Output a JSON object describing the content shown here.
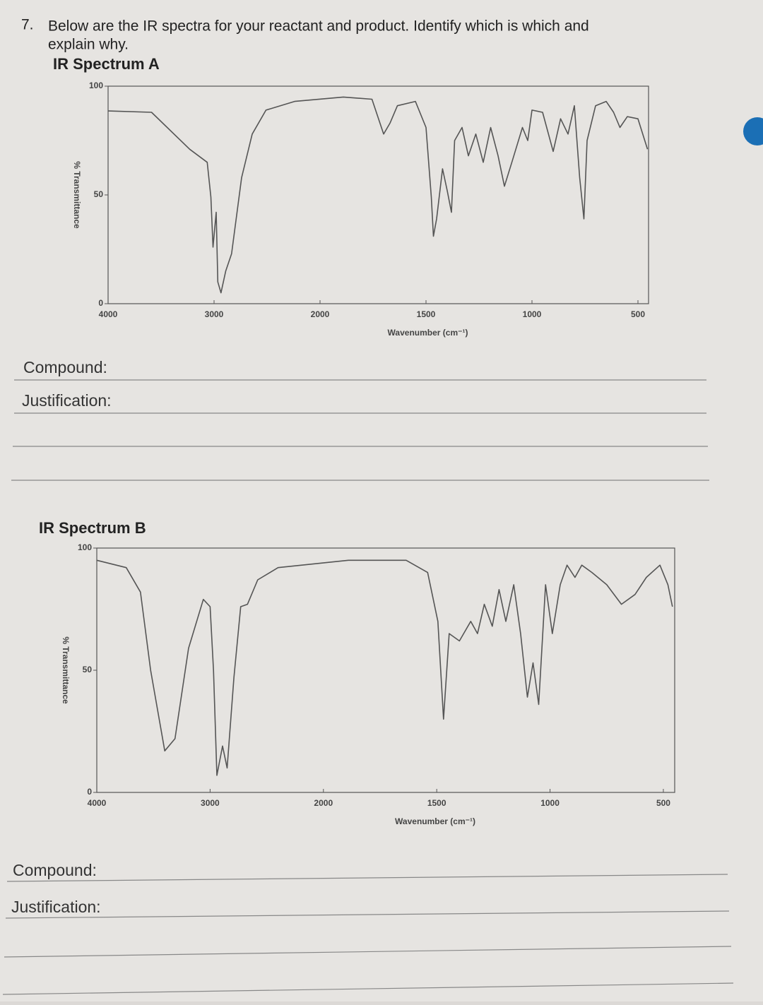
{
  "question": {
    "number": "7.",
    "text_line1": "Below are the IR spectra for your reactant and product. Identify which is which and",
    "text_line2": "explain why."
  },
  "sections": [
    {
      "compound": "Compound:",
      "justification": "Justification:"
    },
    {
      "compound": "Compound:",
      "justification": "Justification:"
    }
  ],
  "chart_data": [
    {
      "type": "line",
      "title": "IR Spectrum A",
      "x_label": "Wavenumber (cm⁻¹)",
      "y_label": "% Transmittance",
      "xlim": [
        4000,
        450
      ],
      "ylim": [
        0,
        100
      ],
      "xticks": [
        4000,
        3000,
        2000,
        1500,
        1000,
        500
      ],
      "yticks": [
        0,
        50,
        100
      ],
      "x_scale_break": 2000,
      "break_factor": 2,
      "color": "#555",
      "x": [
        4000,
        3590,
        3230,
        3065,
        3030,
        3010,
        2980,
        2965,
        2935,
        2890,
        2835,
        2740,
        2640,
        2510,
        2240,
        1890,
        1755,
        1700,
        1670,
        1635,
        1550,
        1500,
        1475,
        1465,
        1450,
        1422,
        1400,
        1380,
        1365,
        1330,
        1300,
        1265,
        1230,
        1195,
        1160,
        1130,
        1095,
        1045,
        1020,
        1000,
        950,
        900,
        865,
        830,
        800,
        775,
        755,
        740,
        700,
        650,
        615,
        585,
        550,
        500,
        455
      ],
      "values": [
        88.6,
        88,
        71,
        65,
        49,
        26,
        42,
        10,
        5,
        15,
        23,
        58,
        78,
        89,
        93,
        95,
        94,
        78,
        83,
        91,
        93,
        81,
        49,
        31,
        39,
        62,
        52,
        42,
        75,
        81,
        68,
        78,
        65,
        81,
        68,
        54,
        65,
        81,
        75,
        89,
        88,
        70,
        85,
        78,
        91,
        58,
        39,
        75,
        91,
        93,
        88,
        81,
        86,
        85,
        71
      ]
    },
    {
      "type": "line",
      "title": "IR Spectrum B",
      "x_label": "Wavenumber (cm⁻¹)",
      "y_label": "% Transmittance",
      "xlim": [
        4000,
        450
      ],
      "ylim": [
        0,
        100
      ],
      "xticks": [
        4000,
        3000,
        2000,
        1500,
        1000,
        500
      ],
      "yticks": [
        0,
        50,
        100
      ],
      "x_scale_break": 2000,
      "break_factor": 2,
      "color": "#555",
      "x": [
        4000,
        3740,
        3615,
        3525,
        3400,
        3310,
        3190,
        3060,
        3000,
        2970,
        2940,
        2890,
        2850,
        2790,
        2730,
        2670,
        2580,
        2400,
        1890,
        1635,
        1540,
        1495,
        1470,
        1445,
        1400,
        1350,
        1320,
        1290,
        1255,
        1225,
        1195,
        1160,
        1130,
        1100,
        1075,
        1050,
        1020,
        990,
        955,
        925,
        890,
        860,
        815,
        750,
        685,
        625,
        575,
        515,
        480,
        460
      ],
      "values": [
        95,
        92,
        82,
        50,
        17,
        22,
        59,
        79,
        76,
        50,
        7,
        19,
        10,
        47,
        76,
        77,
        87,
        92,
        95,
        95,
        90,
        70,
        30,
        65,
        62,
        70,
        65,
        77,
        68,
        83,
        70,
        85,
        65,
        39,
        53,
        36,
        85,
        65,
        85,
        93,
        88,
        93,
        90,
        85,
        77,
        81,
        88,
        93,
        85,
        76
      ]
    }
  ]
}
